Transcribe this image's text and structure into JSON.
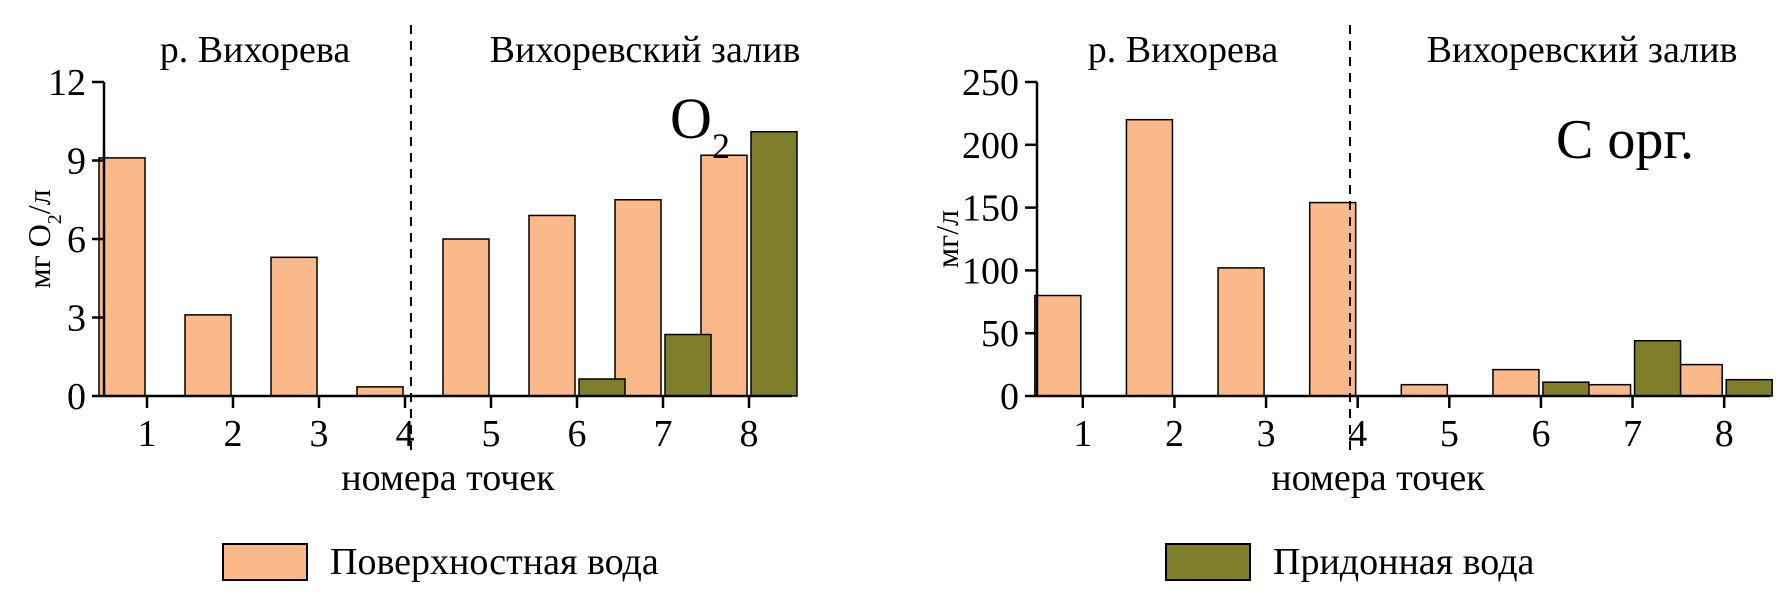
{
  "colors": {
    "surface": "#FBB889",
    "bottom": "#7F7F2B",
    "axis": "#000000"
  },
  "legend": {
    "surface": "Поверхностная вода",
    "bottom": "Придонная вода"
  },
  "chart_data": [
    {
      "type": "bar",
      "title": "O",
      "title_sub": "2",
      "ylabel": "мг O",
      "ylabel_sub": "2",
      "ylabel_suffix": "/л",
      "xlabel": "номера точек",
      "region_left": "р. Вихорева",
      "region_right": "Вихоревский залив",
      "categories": [
        "1",
        "2",
        "3",
        "4",
        "5",
        "6",
        "7",
        "8"
      ],
      "ylim": [
        0,
        12
      ],
      "yticks": [
        "0",
        "3",
        "6",
        "9",
        "12"
      ],
      "series": [
        {
          "name": "Поверхностная вода",
          "values": [
            9.1,
            3.1,
            5.3,
            0.35,
            6.0,
            6.9,
            7.5,
            9.2
          ]
        },
        {
          "name": "Придонная вода",
          "values": [
            null,
            null,
            null,
            null,
            null,
            0.65,
            2.35,
            10.1
          ]
        }
      ]
    },
    {
      "type": "bar",
      "title": "С орг.",
      "ylabel": "мг/л",
      "xlabel": "номера точек",
      "region_left": "р. Вихорева",
      "region_right": "Вихоревский залив",
      "categories": [
        "1",
        "2",
        "3",
        "4",
        "5",
        "6",
        "7",
        "8"
      ],
      "ylim": [
        0,
        250
      ],
      "yticks": [
        "0",
        "50",
        "100",
        "150",
        "200",
        "250"
      ],
      "series": [
        {
          "name": "Поверхностная вода",
          "values": [
            80,
            220,
            102,
            154,
            9,
            21,
            9,
            25
          ]
        },
        {
          "name": "Придонная вода",
          "values": [
            null,
            null,
            null,
            null,
            null,
            11,
            44,
            13
          ]
        }
      ]
    }
  ]
}
